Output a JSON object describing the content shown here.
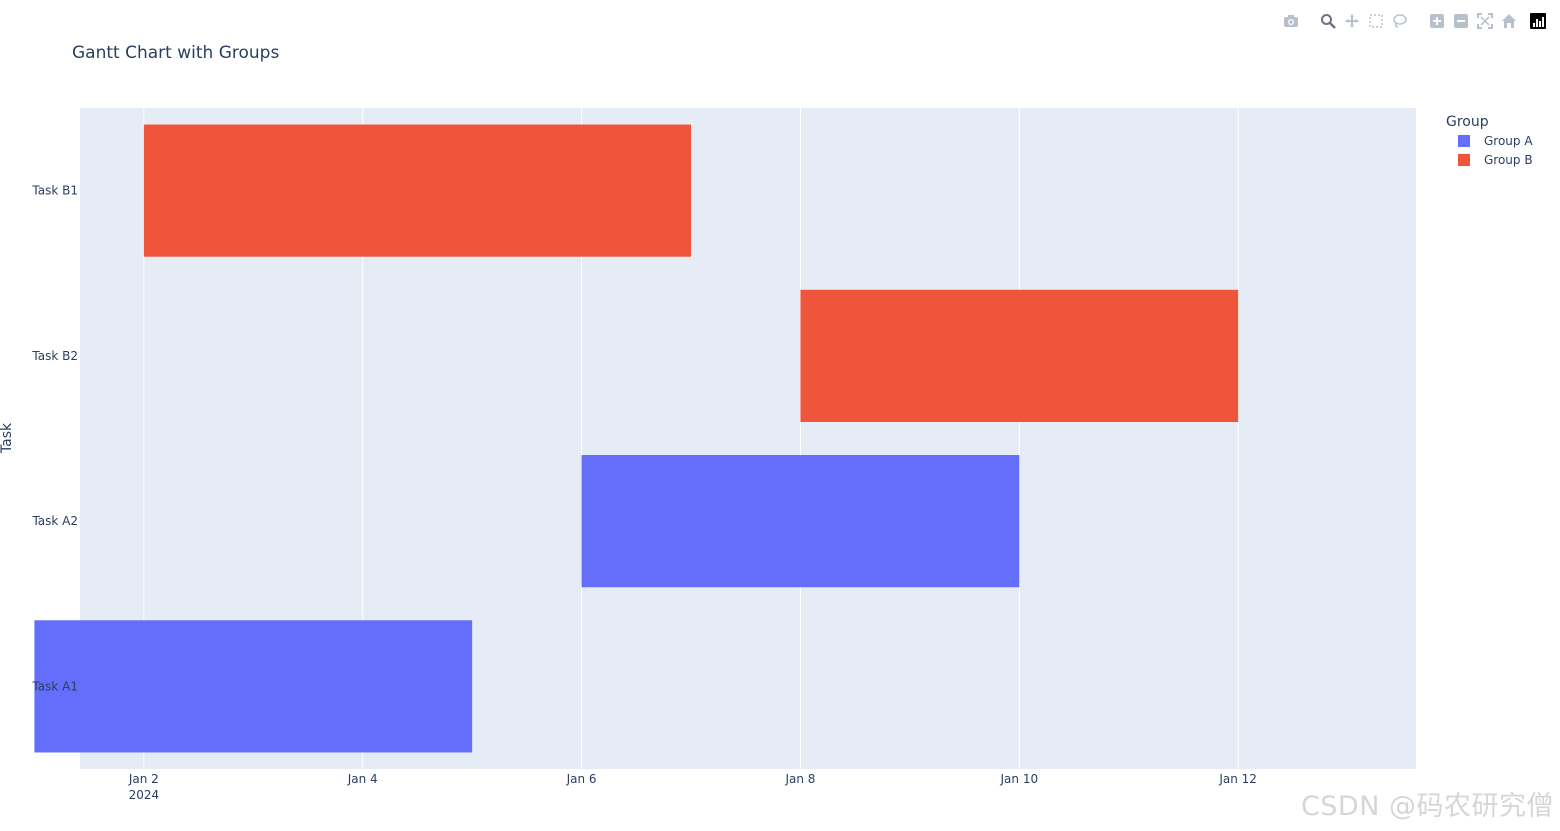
{
  "modebar": {
    "buttons": [
      "camera-icon",
      "zoom-icon",
      "pan-icon",
      "box-select-icon",
      "lasso-icon",
      "zoom-in-icon",
      "zoom-out-icon",
      "autoscale-icon",
      "reset-axes-icon",
      "plotly-logo-icon"
    ]
  },
  "watermark": "CSDN @码农研究僧",
  "colors": {
    "group_a": "#636efa",
    "group_b": "#ef553b",
    "plot_bg": "#e5ecf6",
    "grid": "#ffffff",
    "text": "#2a3f5f"
  },
  "chart_data": {
    "type": "bar",
    "subtype": "gantt",
    "title": "Gantt Chart with Groups",
    "xlabel": "",
    "ylabel": "Task",
    "x_type": "date",
    "xlim": [
      "2024-01-01 10:00",
      "2024-01-13 15:00"
    ],
    "x_ticks": [
      {
        "value": "2024-01-02",
        "label": "Jan 2",
        "sublabel": "2024"
      },
      {
        "value": "2024-01-04",
        "label": "Jan 4"
      },
      {
        "value": "2024-01-06",
        "label": "Jan 6"
      },
      {
        "value": "2024-01-08",
        "label": "Jan 8"
      },
      {
        "value": "2024-01-10",
        "label": "Jan 10"
      },
      {
        "value": "2024-01-12",
        "label": "Jan 12"
      }
    ],
    "categories": [
      "Task A1",
      "Task A2",
      "Task B2",
      "Task B1"
    ],
    "legend": {
      "title": "Group",
      "position": "right",
      "entries": [
        "Group A",
        "Group B"
      ]
    },
    "grid": true,
    "series": [
      {
        "name": "Group A",
        "color": "#636efa",
        "tasks": [
          {
            "task": "Task A1",
            "start": "2024-01-01",
            "end": "2024-01-05"
          },
          {
            "task": "Task A2",
            "start": "2024-01-06",
            "end": "2024-01-10"
          }
        ]
      },
      {
        "name": "Group B",
        "color": "#ef553b",
        "tasks": [
          {
            "task": "Task B1",
            "start": "2024-01-02",
            "end": "2024-01-07"
          },
          {
            "task": "Task B2",
            "start": "2024-01-08",
            "end": "2024-01-12"
          }
        ]
      }
    ]
  }
}
